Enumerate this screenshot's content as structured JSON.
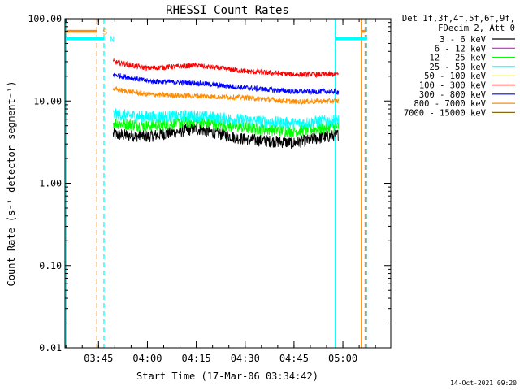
{
  "chart_data": {
    "type": "line",
    "title": "RHESSI Count Rates",
    "xlabel": "Start Time (17-Mar-06 03:34:42)",
    "ylabel": "Count Rate (s⁻¹ detector segment⁻¹)",
    "yscale": "log",
    "ylim": [
      0.01,
      100
    ],
    "xlim": [
      "03:34:42",
      "05:14:42"
    ],
    "x_ticks": [
      "03:45",
      "04:00",
      "04:15",
      "04:30",
      "04:45",
      "05:00"
    ],
    "y_ticks": [
      "0.01",
      "0.10",
      "1.00",
      "10.00",
      "100.00"
    ],
    "legend_header": [
      "Det 1f,3f,4f,5f,6f,9f,",
      "FDecim 2, Att 0"
    ],
    "legend_position": "outside-right",
    "series": [
      {
        "name": "3 - 6 keV",
        "color": "#000000",
        "points": [
          [
            "03:49:30",
            3.9
          ],
          [
            "04:00",
            3.7
          ],
          [
            "04:15",
            4.6
          ],
          [
            "04:30",
            3.4
          ],
          [
            "04:45",
            3.1
          ],
          [
            "04:58:40",
            3.9
          ]
        ]
      },
      {
        "name": "6 - 12 keV",
        "color": "#ff00ff",
        "points": []
      },
      {
        "name": "12 - 25 keV",
        "color": "#00ff00",
        "points": [
          [
            "03:49:30",
            5.4
          ],
          [
            "04:00",
            5.0
          ],
          [
            "04:15",
            5.6
          ],
          [
            "04:30",
            4.7
          ],
          [
            "04:45",
            4.3
          ],
          [
            "04:58:40",
            4.9
          ]
        ]
      },
      {
        "name": "25 - 50 keV",
        "color": "#00ffff",
        "points": [
          [
            "03:49:30",
            6.9
          ],
          [
            "04:00",
            6.4
          ],
          [
            "04:15",
            6.6
          ],
          [
            "04:30",
            5.8
          ],
          [
            "04:45",
            5.3
          ],
          [
            "04:58:40",
            5.9
          ]
        ]
      },
      {
        "name": "50 - 100 keV",
        "color": "#ffff00",
        "points": []
      },
      {
        "name": "100 - 300 keV",
        "color": "#ff0000",
        "points": [
          [
            "03:49:30",
            30
          ],
          [
            "04:00",
            25
          ],
          [
            "04:15",
            27
          ],
          [
            "04:30",
            23
          ],
          [
            "04:45",
            21
          ],
          [
            "04:58:40",
            21
          ]
        ]
      },
      {
        "name": "300 - 800 keV",
        "color": "#0000ff",
        "points": [
          [
            "03:49:30",
            21
          ],
          [
            "04:00",
            17.5
          ],
          [
            "04:15",
            16.5
          ],
          [
            "04:30",
            14.5
          ],
          [
            "04:45",
            13
          ],
          [
            "04:58:40",
            13
          ]
        ]
      },
      {
        "name": "800 - 7000 keV",
        "color": "#ff8c00",
        "points": [
          [
            "03:49:30",
            14
          ],
          [
            "04:00",
            12
          ],
          [
            "04:15",
            11.5
          ],
          [
            "04:30",
            11
          ],
          [
            "04:45",
            9.8
          ],
          [
            "04:58:40",
            10
          ]
        ]
      },
      {
        "name": "7000 - 15000 keV",
        "color": "#8b6914",
        "points": []
      }
    ],
    "flags": [
      {
        "label": "S",
        "color": "#ff8c00",
        "level": 70,
        "segments": [
          [
            "03:34:42",
            "03:44:30"
          ],
          [
            "05:05:40",
            "05:06:50"
          ]
        ]
      },
      {
        "label": "N",
        "color": "#00ffff",
        "level": 57,
        "segments": [
          [
            "03:34:42",
            "03:46:40"
          ],
          [
            "04:57:40",
            "05:07:20"
          ]
        ]
      }
    ],
    "vlines": [
      {
        "time": "03:35:00",
        "color": "#00ffff",
        "style": "solid"
      },
      {
        "time": "03:44:30",
        "color": "#ff8c00",
        "style": "dashed"
      },
      {
        "time": "03:46:40",
        "color": "#00ffff",
        "style": "dashed"
      },
      {
        "time": "04:57:40",
        "color": "#00ffff",
        "style": "solid"
      },
      {
        "time": "05:05:40",
        "color": "#ff8c00",
        "style": "solid"
      },
      {
        "time": "05:06:50",
        "color": "#ff8c00",
        "style": "dashed"
      },
      {
        "time": "05:07:20",
        "color": "#00ffff",
        "style": "dashed"
      }
    ]
  },
  "footer": {
    "timestamp": "14-Oct-2021 09:20"
  }
}
